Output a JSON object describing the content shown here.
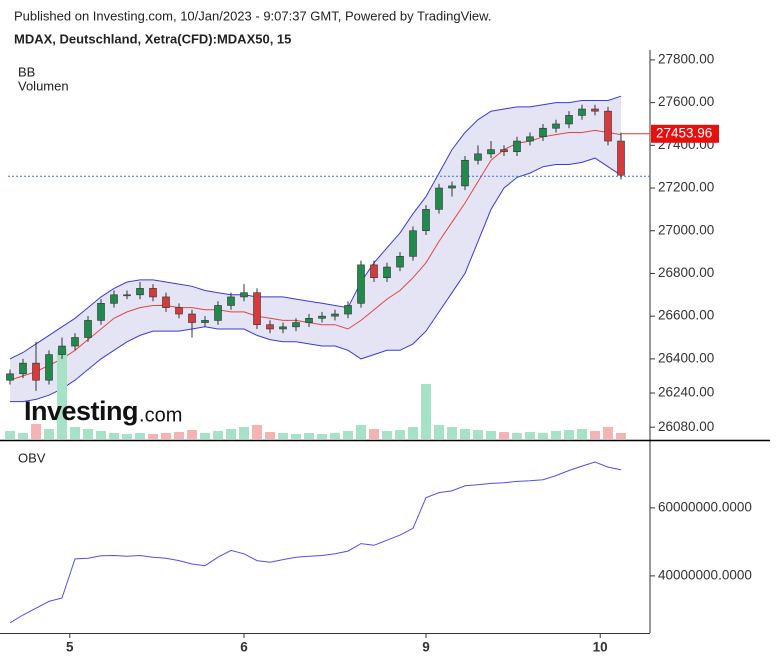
{
  "header": {
    "published": "Published on Investing.com, 10/Jan/2023 - 9:07:37 GMT, Powered by TradingView.",
    "symbol": "MDAX, Deutschland, Xetra(CFD):MDAX50, 15",
    "logo": "Investing",
    "logo_suffix": ".com"
  },
  "chart_data": [
    {
      "type": "candlestick",
      "indicators": [
        "BB",
        "Volumen"
      ],
      "open": [
        26300,
        26330,
        26380,
        26300,
        26420,
        26460,
        26500,
        26580,
        26660,
        26700,
        26700,
        26730,
        26690,
        26640,
        26610,
        26570,
        26580,
        26650,
        26690,
        26710,
        26560,
        26540,
        26550,
        26570,
        26590,
        26600,
        26610,
        26660,
        26840,
        26780,
        26830,
        26880,
        27000,
        27100,
        27200,
        27210,
        27330,
        27360,
        27380,
        27370,
        27420,
        27440,
        27480,
        27500,
        27540,
        27570,
        27560,
        27420
      ],
      "high": [
        26350,
        26400,
        26480,
        26440,
        26500,
        26520,
        26600,
        26680,
        26720,
        26720,
        26760,
        26750,
        26710,
        26660,
        26630,
        26600,
        26670,
        26710,
        26750,
        26730,
        26580,
        26570,
        26590,
        26610,
        26620,
        26630,
        26670,
        26860,
        26860,
        26850,
        26900,
        27020,
        27120,
        27220,
        27230,
        27350,
        27400,
        27420,
        27400,
        27440,
        27460,
        27500,
        27520,
        27560,
        27590,
        27590,
        27580,
        27460
      ],
      "low": [
        26280,
        26310,
        26250,
        26280,
        26400,
        26440,
        26480,
        26560,
        26640,
        26680,
        26680,
        26670,
        26620,
        26590,
        26500,
        26550,
        26560,
        26630,
        26670,
        26540,
        26520,
        26520,
        26530,
        26550,
        26570,
        26580,
        26590,
        26640,
        26760,
        26760,
        26810,
        26860,
        26980,
        27080,
        27160,
        27190,
        27310,
        27340,
        27350,
        27350,
        27400,
        27420,
        27460,
        27480,
        27520,
        27540,
        27400,
        27240
      ],
      "close": [
        26330,
        26380,
        26300,
        26420,
        26460,
        26500,
        26580,
        26660,
        26700,
        26700,
        26730,
        26690,
        26640,
        26610,
        26570,
        26580,
        26650,
        26690,
        26710,
        26560,
        26540,
        26550,
        26570,
        26590,
        26600,
        26610,
        26650,
        26840,
        26780,
        26830,
        26880,
        27000,
        27100,
        27200,
        27210,
        27330,
        27360,
        27380,
        27370,
        27420,
        27440,
        27480,
        27500,
        27540,
        27570,
        27560,
        27420,
        27260
      ],
      "bb_upper": [
        26400,
        26430,
        26470,
        26510,
        26550,
        26590,
        26640,
        26690,
        26730,
        26760,
        26770,
        26770,
        26760,
        26750,
        26740,
        26720,
        26710,
        26700,
        26700,
        26690,
        26690,
        26690,
        26680,
        26670,
        26660,
        26650,
        26640,
        26760,
        26850,
        26920,
        26990,
        27080,
        27160,
        27270,
        27380,
        27460,
        27520,
        27560,
        27570,
        27580,
        27580,
        27590,
        27600,
        27600,
        27610,
        27610,
        27610,
        27630
      ],
      "bb_middle": [
        26300,
        26320,
        26340,
        26370,
        26400,
        26440,
        26490,
        26540,
        26590,
        26620,
        26640,
        26650,
        26650,
        26640,
        26640,
        26630,
        26630,
        26620,
        26620,
        26600,
        26590,
        26580,
        26580,
        26570,
        26560,
        26560,
        26540,
        26580,
        26630,
        26680,
        26720,
        26780,
        26850,
        26950,
        27040,
        27130,
        27230,
        27330,
        27380,
        27410,
        27420,
        27440,
        27450,
        27460,
        27460,
        27470,
        27460,
        27450
      ],
      "bb_lower": [
        26200,
        26200,
        26210,
        26230,
        26260,
        26300,
        26350,
        26400,
        26440,
        26480,
        26510,
        26530,
        26530,
        26530,
        26540,
        26550,
        26540,
        26540,
        26540,
        26510,
        26490,
        26480,
        26480,
        26470,
        26460,
        26460,
        26440,
        26400,
        26420,
        26440,
        26440,
        26470,
        26530,
        26620,
        26710,
        26800,
        26950,
        27100,
        27200,
        27250,
        27270,
        27300,
        27310,
        27310,
        27320,
        27340,
        27300,
        27260
      ],
      "volume": [
        8,
        6,
        15,
        10,
        90,
        12,
        10,
        8,
        6,
        5,
        6,
        5,
        6,
        7,
        9,
        6,
        8,
        10,
        12,
        14,
        7,
        6,
        5,
        6,
        5,
        6,
        8,
        14,
        10,
        8,
        9,
        12,
        55,
        14,
        12,
        10,
        9,
        8,
        7,
        6,
        7,
        6,
        8,
        9,
        10,
        8,
        12,
        6
      ],
      "colors": {
        "up": "#1f8a4c",
        "down": "#d63a3a",
        "bb_band": "#3b3bd6",
        "bb_middle": "#e04646",
        "bb_fill": "#e4e4f4",
        "vol_up": "#a6e3c6",
        "vol_down": "#f6b3b3",
        "price_line": "#3b6fe0"
      },
      "last_price": 27453.96,
      "price_line": 27255,
      "xlim": [
        0,
        47
      ],
      "ylim": [
        26020,
        27823
      ],
      "yticks": [
        {
          "value": 27800,
          "label": "27800.00"
        },
        {
          "value": 27600,
          "label": "27600.00"
        },
        {
          "value": 27400,
          "label": "27400.00"
        },
        {
          "value": 27200,
          "label": "27200.00"
        },
        {
          "value": 27000,
          "label": "27000.00"
        },
        {
          "value": 26800,
          "label": "26800.00"
        },
        {
          "value": 26600,
          "label": "26600.00"
        },
        {
          "value": 26400,
          "label": "26400.00"
        },
        {
          "value": 26240,
          "label": "26240.00"
        },
        {
          "value": 26080,
          "label": "26080.00"
        }
      ]
    },
    {
      "type": "line",
      "title": "OBV",
      "series": [
        {
          "name": "OBV",
          "color": "#5050e8",
          "values": [
            26200000,
            28500000,
            30500000,
            32500000,
            33500000,
            45000000,
            45200000,
            45900000,
            46000000,
            45800000,
            46000000,
            45500000,
            45200000,
            44500000,
            43500000,
            43000000,
            45500000,
            47500000,
            46500000,
            44500000,
            44000000,
            44800000,
            45500000,
            45800000,
            46000000,
            46500000,
            47300000,
            49500000,
            49000000,
            50500000,
            52000000,
            54000000,
            63000000,
            64500000,
            65000000,
            66500000,
            66800000,
            67200000,
            67400000,
            67800000,
            68000000,
            68300000,
            69500000,
            71000000,
            72300000,
            73500000,
            72000000,
            71200000
          ]
        }
      ],
      "xlim": [
        0,
        47
      ],
      "ylim": [
        23200000,
        78500000
      ],
      "yticks": [
        {
          "value": 40000000,
          "label": "40000000.0000"
        },
        {
          "value": 60000000,
          "label": "60000000.0000"
        }
      ],
      "xticks": [
        {
          "value": 4.6,
          "label": "5"
        },
        {
          "value": 18,
          "label": "6"
        },
        {
          "value": 32,
          "label": "9"
        },
        {
          "value": 45.4,
          "label": "10"
        }
      ]
    }
  ]
}
